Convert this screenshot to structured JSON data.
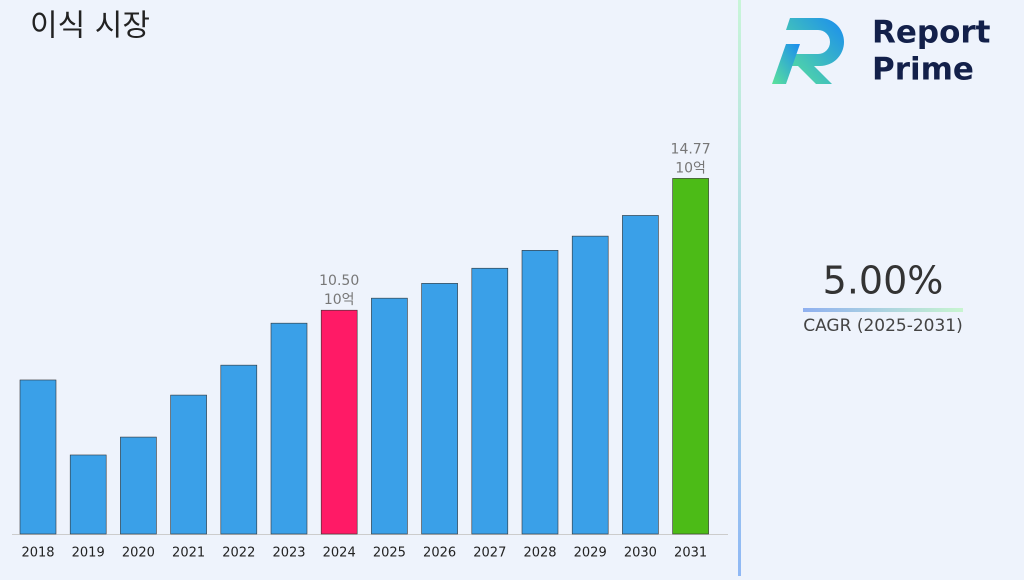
{
  "chart_data": {
    "type": "bar",
    "title": "이식 시장",
    "categories": [
      "2018",
      "2019",
      "2020",
      "2021",
      "2022",
      "2023",
      "2024",
      "2025",
      "2026",
      "2027",
      "2028",
      "2029",
      "2030",
      "2031"
    ],
    "values": [
      8.24,
      5.81,
      6.39,
      7.75,
      8.72,
      10.08,
      10.5,
      10.89,
      11.37,
      11.86,
      12.44,
      12.9,
      13.57,
      14.77
    ],
    "value_labels": [
      null,
      null,
      null,
      null,
      null,
      null,
      "10.50",
      null,
      null,
      null,
      null,
      null,
      null,
      "14.77"
    ],
    "value_unit": "10억",
    "colors": [
      "#3aa0e8",
      "#3aa0e8",
      "#3aa0e8",
      "#3aa0e8",
      "#3aa0e8",
      "#3aa0e8",
      "#ff1a66",
      "#3aa0e8",
      "#3aa0e8",
      "#3aa0e8",
      "#3aa0e8",
      "#3aa0e8",
      "#3aa0e8",
      "#4cbb17"
    ],
    "ylim": [
      3.25,
      16.5
    ]
  },
  "cagr": {
    "value": "5.00%",
    "label": "CAGR (2025-2031)"
  },
  "logo": {
    "line1": "Report",
    "line2": "Prime"
  }
}
